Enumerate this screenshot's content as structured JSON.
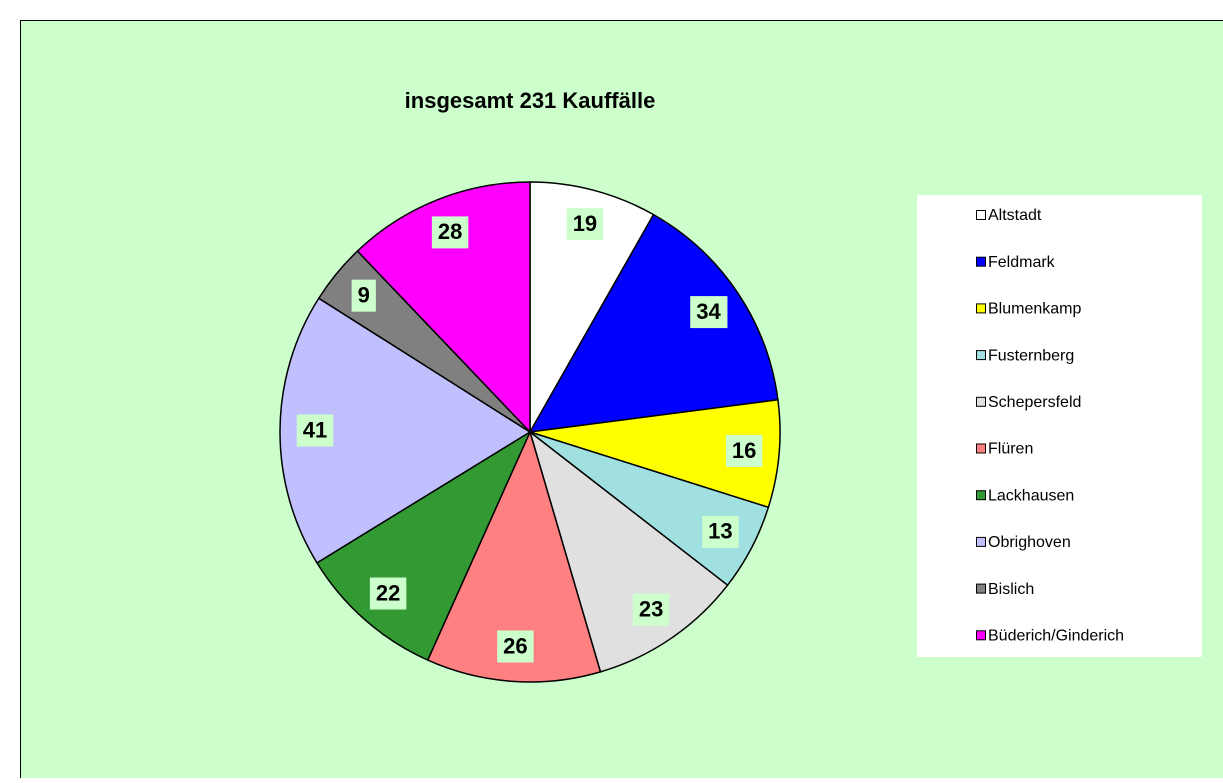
{
  "chart_data": {
    "type": "pie",
    "title": "insgesamt 231 Kauffälle",
    "categories": [
      "Altstadt",
      "Feldmark",
      "Blumenkamp",
      "Fusternberg",
      "Schepersfeld",
      "Flüren",
      "Lackhausen",
      "Obrighoven",
      "Bislich",
      "Büderich/Ginderich"
    ],
    "values": [
      19,
      34,
      16,
      13,
      23,
      26,
      22,
      41,
      9,
      28
    ],
    "colors": [
      "#ffffff",
      "#0000ff",
      "#ffff00",
      "#a0e0e0",
      "#e0e0e0",
      "#ff8080",
      "#339933",
      "#c0c0ff",
      "#808080",
      "#ff00ff"
    ],
    "legend": "right"
  }
}
